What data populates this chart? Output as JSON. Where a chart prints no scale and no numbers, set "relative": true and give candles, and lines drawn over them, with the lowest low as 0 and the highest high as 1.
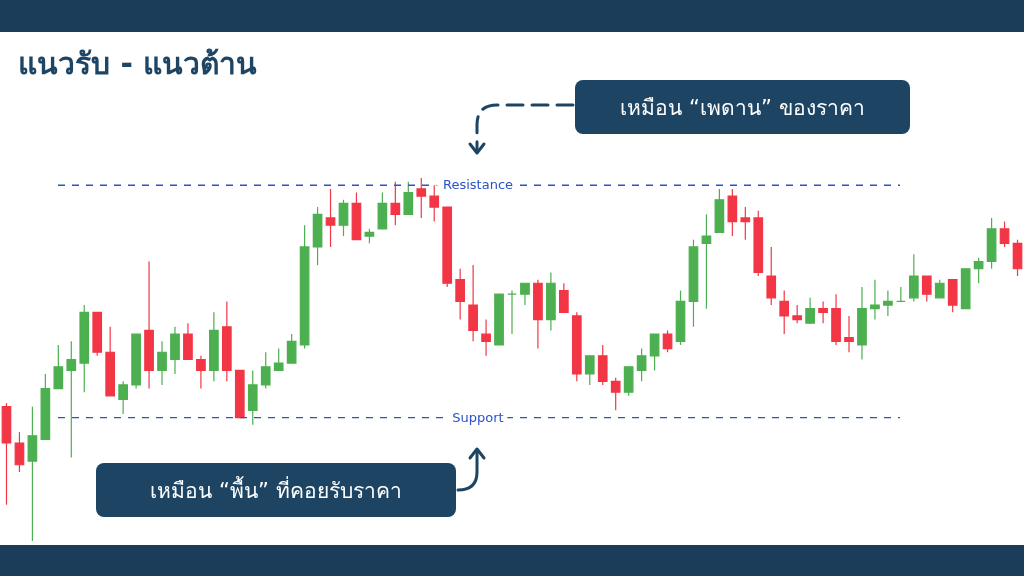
{
  "chart_data": {
    "type": "candlestick",
    "title": "แนวรับ - แนวต้าน",
    "relative": true,
    "colors": [
      "#f23645",
      "#f23645",
      "#4caf50",
      "#4caf50",
      "#4caf50",
      "#4caf50",
      "#4caf50",
      "#f23645",
      "#f23645",
      "#4caf50",
      "#4caf50",
      "#f23645",
      "#4caf50",
      "#4caf50",
      "#f23645",
      "#f23645",
      "#4caf50",
      "#f23645",
      "#f23645",
      "#4caf50",
      "#4caf50",
      "#4caf50",
      "#4caf50",
      "#4caf50",
      "#4caf50",
      "#f23645",
      "#4caf50",
      "#f23645",
      "#4caf50",
      "#4caf50",
      "#f23645",
      "#4caf50",
      "#f23645",
      "#f23645",
      "#f23645",
      "#f23645",
      "#f23645",
      "#f23645",
      "#4caf50",
      "#4caf50",
      "#4caf50",
      "#f23645",
      "#4caf50",
      "#f23645",
      "#f23645",
      "#4caf50",
      "#f23645",
      "#f23645",
      "#4caf50",
      "#4caf50",
      "#4caf50",
      "#f23645",
      "#4caf50",
      "#4caf50",
      "#4caf50",
      "#4caf50",
      "#f23645",
      "#f23645",
      "#f23645",
      "#f23645",
      "#f23645",
      "#f23645",
      "#4caf50",
      "#f23645",
      "#f23645",
      "#f23645",
      "#4caf50",
      "#4caf50",
      "#4caf50",
      "#4caf50",
      "#4caf50",
      "#f23645",
      "#4caf50",
      "#f23645",
      "#4caf50",
      "#4caf50",
      "#4caf50",
      "#f23645",
      "#f23645"
    ],
    "categories": [
      null,
      null,
      null,
      null,
      null,
      null,
      null,
      null,
      null,
      null,
      null,
      null,
      null,
      null,
      null,
      null,
      null,
      null,
      null,
      null,
      null,
      null,
      null,
      null,
      null,
      null,
      null,
      null,
      null,
      null,
      null,
      null,
      null,
      null,
      null,
      null,
      null,
      null,
      null,
      null,
      null,
      null,
      null,
      null,
      null,
      null,
      null,
      null,
      null,
      null,
      null,
      null,
      null,
      null,
      null,
      null,
      null,
      null,
      null,
      null,
      null,
      null,
      null,
      null,
      null,
      null,
      null,
      null,
      null,
      null,
      null,
      null,
      null,
      null,
      null,
      null,
      null,
      null,
      null
    ],
    "ohlc": [
      [
        0.37,
        0.38,
        0.1,
        0.27
      ],
      [
        0.27,
        0.3,
        0.19,
        0.21
      ],
      [
        0.22,
        0.37,
        0,
        0.29
      ],
      [
        0.28,
        0.46,
        0.28,
        0.42
      ],
      [
        0.42,
        0.54,
        0.42,
        0.48
      ],
      [
        0.47,
        0.55,
        0.23,
        0.5
      ],
      [
        0.49,
        0.65,
        0.41,
        0.63
      ],
      [
        0.63,
        0.63,
        0.51,
        0.52
      ],
      [
        0.52,
        0.59,
        0.4,
        0.4
      ],
      [
        0.39,
        0.44,
        0.35,
        0.43
      ],
      [
        0.43,
        0.57,
        0.42,
        0.57
      ],
      [
        0.58,
        0.77,
        0.42,
        0.47
      ],
      [
        0.47,
        0.55,
        0.43,
        0.52
      ],
      [
        0.5,
        0.59,
        0.46,
        0.57
      ],
      [
        0.57,
        0.6,
        0.5,
        0.5
      ],
      [
        0.5,
        0.51,
        0.42,
        0.47
      ],
      [
        0.47,
        0.63,
        0.44,
        0.58
      ],
      [
        0.59,
        0.66,
        0.44,
        0.47
      ],
      [
        0.47,
        0.47,
        0.34,
        0.34
      ],
      [
        0.36,
        0.47,
        0.32,
        0.43
      ],
      [
        0.43,
        0.52,
        0.42,
        0.48
      ],
      [
        0.47,
        0.53,
        0.47,
        0.49
      ],
      [
        0.49,
        0.57,
        0.49,
        0.55
      ],
      [
        0.54,
        0.87,
        0.53,
        0.81
      ],
      [
        0.81,
        0.92,
        0.76,
        0.9
      ],
      [
        0.89,
        0.97,
        0.81,
        0.87
      ],
      [
        0.87,
        0.94,
        0.84,
        0.93
      ],
      [
        0.93,
        0.96,
        0.83,
        0.83
      ],
      [
        0.84,
        0.86,
        0.82,
        0.85
      ],
      [
        0.86,
        0.96,
        0.86,
        0.93
      ],
      [
        0.93,
        0.99,
        0.87,
        0.9
      ],
      [
        0.9,
        0.99,
        0.9,
        0.96
      ],
      [
        0.97,
        1,
        0.89,
        0.95
      ],
      [
        0.95,
        0.98,
        0.88,
        0.92
      ],
      [
        0.92,
        0.92,
        0.7,
        0.71
      ],
      [
        0.72,
        0.75,
        0.61,
        0.66
      ],
      [
        0.65,
        0.76,
        0.55,
        0.58
      ],
      [
        0.57,
        0.61,
        0.51,
        0.55
      ],
      [
        0.54,
        0.68,
        0.54,
        0.68
      ],
      [
        0.68,
        0.69,
        0.57,
        0.68
      ],
      [
        0.68,
        0.71,
        0.65,
        0.71
      ],
      [
        0.71,
        0.72,
        0.53,
        0.61
      ],
      [
        0.61,
        0.74,
        0.58,
        0.71
      ],
      [
        0.69,
        0.71,
        0.63,
        0.63
      ],
      [
        0.62,
        0.63,
        0.44,
        0.46
      ],
      [
        0.46,
        0.51,
        0.43,
        0.51
      ],
      [
        0.51,
        0.54,
        0.43,
        0.44
      ],
      [
        0.44,
        0.45,
        0.36,
        0.41
      ],
      [
        0.41,
        0.48,
        0.4,
        0.48
      ],
      [
        0.47,
        0.53,
        0.44,
        0.51
      ],
      [
        0.51,
        0.57,
        0.47,
        0.57
      ],
      [
        0.57,
        0.58,
        0.52,
        0.53
      ],
      [
        0.55,
        0.69,
        0.54,
        0.66
      ],
      [
        0.66,
        0.83,
        0.59,
        0.81
      ],
      [
        0.82,
        0.9,
        0.64,
        0.84
      ],
      [
        0.85,
        0.97,
        0.85,
        0.94
      ],
      [
        0.95,
        0.97,
        0.84,
        0.88
      ],
      [
        0.89,
        0.92,
        0.83,
        0.88
      ],
      [
        0.89,
        0.91,
        0.73,
        0.74
      ],
      [
        0.73,
        0.81,
        0.65,
        0.67
      ],
      [
        0.66,
        0.69,
        0.57,
        0.62
      ],
      [
        0.62,
        0.65,
        0.6,
        0.61
      ],
      [
        0.6,
        0.67,
        0.6,
        0.64
      ],
      [
        0.64,
        0.66,
        0.6,
        0.63
      ],
      [
        0.64,
        0.68,
        0.54,
        0.55
      ],
      [
        0.56,
        0.62,
        0.52,
        0.55
      ],
      [
        0.54,
        0.7,
        0.5,
        0.64
      ],
      [
        0.64,
        0.72,
        0.61,
        0.65
      ],
      [
        0.65,
        0.69,
        0.62,
        0.66
      ],
      [
        0.66,
        0.7,
        0.66,
        0.66
      ],
      [
        0.67,
        0.79,
        0.66,
        0.73
      ],
      [
        0.73,
        0.73,
        0.66,
        0.68
      ],
      [
        0.67,
        0.72,
        0.67,
        0.71
      ],
      [
        0.72,
        0.72,
        0.63,
        0.65
      ],
      [
        0.64,
        0.75,
        0.64,
        0.75
      ],
      [
        0.75,
        0.78,
        0.71,
        0.77
      ],
      [
        0.77,
        0.89,
        0.75,
        0.86
      ],
      [
        0.86,
        0.88,
        0.81,
        0.82
      ],
      [
        0.82,
        0.83,
        0.73,
        0.75
      ]
    ],
    "ref_lines": [
      {
        "axis": "y",
        "value": 0.98,
        "label": "Resistance",
        "color": "#2a52c9",
        "line_style": "dashed"
      },
      {
        "axis": "y",
        "value": 0.34,
        "label": "Support",
        "color": "#2a52c9",
        "line_style": "dashed"
      }
    ],
    "annotations": [
      "เหมือน “เพดาน” ของราคา",
      "เหมือน “พื้น” ที่คอยรับราคา"
    ]
  }
}
